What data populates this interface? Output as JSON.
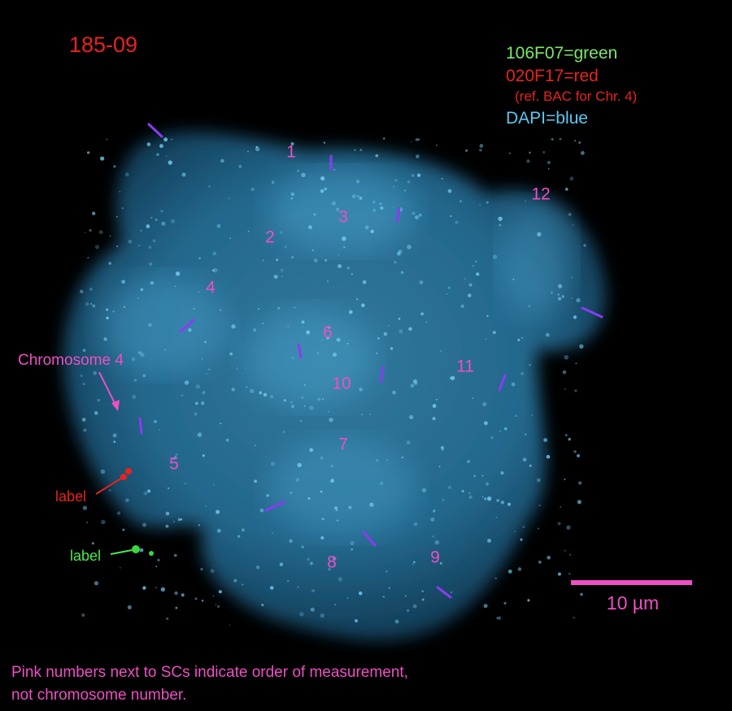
{
  "sample_id": "185-09",
  "legend": [
    "106F07=green",
    "020F17=red",
    "(ref. BAC for Chr. 4)",
    "DAPI=blue"
  ],
  "sc_numbers": [
    "1",
    "2",
    "3",
    "4",
    "5",
    "6",
    "7",
    "8",
    "9",
    "10",
    "11",
    "12"
  ],
  "chromosome_label": "Chromosome 4",
  "red_label": "label",
  "green_label": "label",
  "scale_bar": "10 µm",
  "caption": [
    "Pink numbers next to SCs indicate order of measurement,",
    "not chromosome number."
  ]
}
